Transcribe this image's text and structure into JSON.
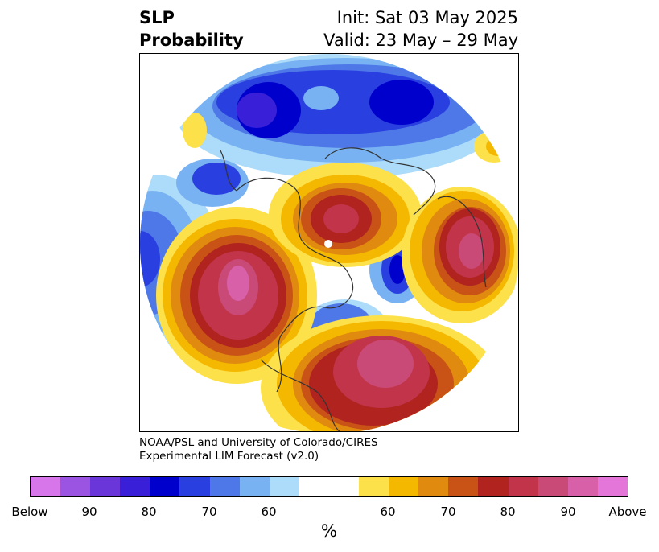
{
  "title": {
    "left_line1": "SLP",
    "left_line2": "Probability",
    "right_line1": "Init: Sat 03 May 2025",
    "right_line2": "Valid: 23 May – 29 May"
  },
  "credit": {
    "line1": "NOAA/PSL and University of Colorado/CIRES",
    "line2": "Experimental LIM Forecast (v2.0)"
  },
  "colorbar": {
    "colors": [
      "#d676ea",
      "#9b54e2",
      "#6a36da",
      "#3a1fd8",
      "#0000cc",
      "#2a3fe0",
      "#4e78e8",
      "#78b2f2",
      "#acdcfa",
      "#ffffff",
      "#ffffff",
      "#fde14a",
      "#f4b800",
      "#e08a0f",
      "#c95317",
      "#b0231f",
      "#c2344a",
      "#c94a76",
      "#d860a8",
      "#e476da"
    ],
    "tick_labels": [
      "Below",
      "90",
      "80",
      "70",
      "60",
      "60",
      "70",
      "80",
      "90",
      "Above"
    ],
    "unit": "%"
  }
}
